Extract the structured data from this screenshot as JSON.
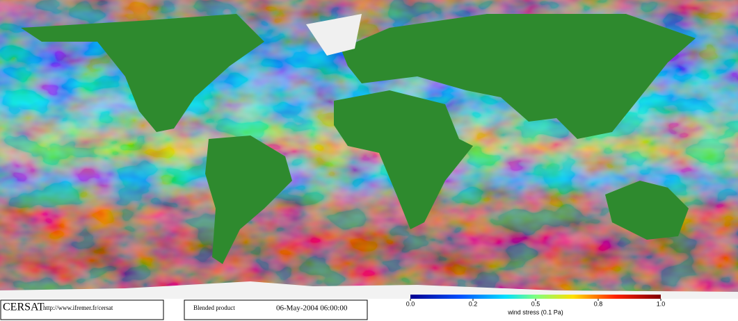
{
  "header": {
    "logo": "CERSAT",
    "url": "http://www.ifremer.fr/cersat"
  },
  "product": {
    "name": "Blended product",
    "date": "06-May-2004 06:00:00"
  },
  "colorbar": {
    "ticks": [
      {
        "value": 0,
        "label": "0.0"
      },
      0.2,
      0.5,
      0.8,
      {
        "value": 1,
        "label": "1.0"
      }
    ],
    "label": "wind stress (0.1 Pa)"
  }
}
